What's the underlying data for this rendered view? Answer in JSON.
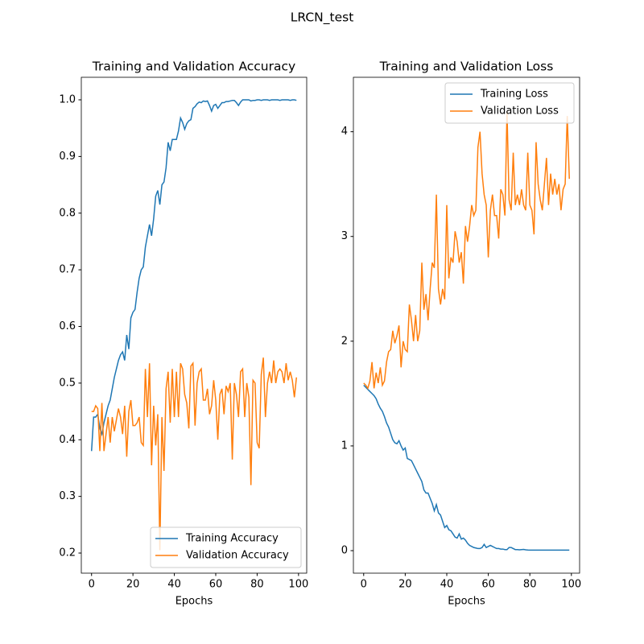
{
  "figure_title": "LRCN_test",
  "chart_data": [
    {
      "type": "line",
      "title": "Training and Validation Accuracy",
      "x_label": "Epochs",
      "x": [
        0,
        1,
        2,
        3,
        4,
        5,
        6,
        7,
        8,
        9,
        10,
        11,
        12,
        13,
        14,
        15,
        16,
        17,
        18,
        19,
        20,
        21,
        22,
        23,
        24,
        25,
        26,
        27,
        28,
        29,
        30,
        31,
        32,
        33,
        34,
        35,
        36,
        37,
        38,
        39,
        40,
        41,
        42,
        43,
        44,
        45,
        46,
        47,
        48,
        49,
        50,
        51,
        52,
        53,
        54,
        55,
        56,
        57,
        58,
        59,
        60,
        61,
        62,
        63,
        64,
        65,
        66,
        67,
        68,
        69,
        70,
        71,
        72,
        73,
        74,
        75,
        76,
        77,
        78,
        79,
        80,
        81,
        82,
        83,
        84,
        85,
        86,
        87,
        88,
        89,
        90,
        91,
        92,
        93,
        94,
        95,
        96,
        97,
        98,
        99
      ],
      "series": [
        {
          "name": "Training Accuracy",
          "color": "#1f77b4",
          "values": [
            0.38,
            0.44,
            0.44,
            0.445,
            0.42,
            0.41,
            0.43,
            0.445,
            0.46,
            0.47,
            0.49,
            0.51,
            0.525,
            0.54,
            0.55,
            0.555,
            0.54,
            0.585,
            0.56,
            0.615,
            0.625,
            0.63,
            0.66,
            0.685,
            0.7,
            0.705,
            0.74,
            0.76,
            0.78,
            0.76,
            0.79,
            0.83,
            0.84,
            0.815,
            0.85,
            0.855,
            0.88,
            0.925,
            0.91,
            0.93,
            0.93,
            0.93,
            0.945,
            0.968,
            0.96,
            0.948,
            0.958,
            0.963,
            0.965,
            0.985,
            0.988,
            0.993,
            0.996,
            0.995,
            0.998,
            0.997,
            0.998,
            0.99,
            0.98,
            0.99,
            0.992,
            0.985,
            0.99,
            0.995,
            0.995,
            0.997,
            0.997,
            0.998,
            0.999,
            0.999,
            0.995,
            0.99,
            0.996,
            1,
            1,
            1,
            1,
            0.998,
            0.999,
            0.999,
            1,
            1,
            0.999,
            1,
            1,
            1,
            0.999,
            1,
            1,
            1,
            1,
            0.999,
            1,
            1,
            1,
            1,
            0.999,
            1,
            1,
            0.999
          ]
        },
        {
          "name": "Validation Accuracy",
          "color": "#ff7f0e",
          "values": [
            0.45,
            0.45,
            0.46,
            0.455,
            0.38,
            0.465,
            0.38,
            0.41,
            0.44,
            0.395,
            0.44,
            0.415,
            0.435,
            0.455,
            0.44,
            0.41,
            0.46,
            0.37,
            0.45,
            0.47,
            0.425,
            0.425,
            0.43,
            0.44,
            0.395,
            0.39,
            0.525,
            0.44,
            0.535,
            0.355,
            0.46,
            0.39,
            0.445,
            0.205,
            0.44,
            0.345,
            0.49,
            0.52,
            0.43,
            0.525,
            0.44,
            0.52,
            0.44,
            0.535,
            0.525,
            0.48,
            0.465,
            0.42,
            0.53,
            0.535,
            0.425,
            0.5,
            0.52,
            0.525,
            0.47,
            0.47,
            0.49,
            0.445,
            0.46,
            0.505,
            0.47,
            0.4,
            0.48,
            0.49,
            0.445,
            0.495,
            0.485,
            0.5,
            0.365,
            0.5,
            0.48,
            0.44,
            0.52,
            0.525,
            0.44,
            0.5,
            0.475,
            0.32,
            0.505,
            0.5,
            0.395,
            0.385,
            0.515,
            0.545,
            0.44,
            0.5,
            0.52,
            0.5,
            0.54,
            0.5,
            0.52,
            0.525,
            0.52,
            0.5,
            0.535,
            0.505,
            0.52,
            0.505,
            0.475,
            0.51
          ]
        }
      ],
      "xlim": [
        -4.95,
        103.95
      ],
      "xticks": [
        0,
        20,
        40,
        60,
        80,
        100
      ],
      "ylim": [
        0.1645,
        1.0398
      ],
      "yticks": [
        0.2,
        0.3,
        0.4,
        0.5,
        0.6,
        0.7,
        0.8,
        0.9,
        {
          "value": 1,
          "label": "1.0"
        }
      ],
      "legend": "lower right"
    },
    {
      "type": "line",
      "title": "Training and Validation Loss",
      "x_label": "Epochs",
      "x": [
        0,
        1,
        2,
        3,
        4,
        5,
        6,
        7,
        8,
        9,
        10,
        11,
        12,
        13,
        14,
        15,
        16,
        17,
        18,
        19,
        20,
        21,
        22,
        23,
        24,
        25,
        26,
        27,
        28,
        29,
        30,
        31,
        32,
        33,
        34,
        35,
        36,
        37,
        38,
        39,
        40,
        41,
        42,
        43,
        44,
        45,
        46,
        47,
        48,
        49,
        50,
        51,
        52,
        53,
        54,
        55,
        56,
        57,
        58,
        59,
        60,
        61,
        62,
        63,
        64,
        65,
        66,
        67,
        68,
        69,
        70,
        71,
        72,
        73,
        74,
        75,
        76,
        77,
        78,
        79,
        80,
        81,
        82,
        83,
        84,
        85,
        86,
        87,
        88,
        89,
        90,
        91,
        92,
        93,
        94,
        95,
        96,
        97,
        98,
        99
      ],
      "series": [
        {
          "name": "Training Loss",
          "color": "#1f77b4",
          "values": [
            1.58,
            1.56,
            1.54,
            1.52,
            1.5,
            1.48,
            1.45,
            1.4,
            1.36,
            1.33,
            1.28,
            1.22,
            1.18,
            1.12,
            1.06,
            1.03,
            1.02,
            1.05,
            1.0,
            0.96,
            0.98,
            0.88,
            0.87,
            0.86,
            0.82,
            0.78,
            0.74,
            0.7,
            0.66,
            0.58,
            0.55,
            0.55,
            0.5,
            0.45,
            0.38,
            0.44,
            0.36,
            0.34,
            0.28,
            0.22,
            0.24,
            0.2,
            0.19,
            0.16,
            0.13,
            0.12,
            0.16,
            0.11,
            0.12,
            0.1,
            0.07,
            0.05,
            0.04,
            0.03,
            0.025,
            0.02,
            0.02,
            0.03,
            0.06,
            0.03,
            0.04,
            0.05,
            0.04,
            0.03,
            0.02,
            0.02,
            0.015,
            0.015,
            0.01,
            0.01,
            0.03,
            0.03,
            0.02,
            0.01,
            0.01,
            0.008,
            0.01,
            0.012,
            0.008,
            0.006,
            0.005,
            0.005,
            0.005,
            0.005,
            0.005,
            0.005,
            0.005,
            0.005,
            0.005,
            0.005,
            0.005,
            0.005,
            0.005,
            0.005,
            0.005,
            0.005,
            0.005,
            0.005,
            0.005,
            0.005
          ]
        },
        {
          "name": "Validation Loss",
          "color": "#ff7f0e",
          "values": [
            1.6,
            1.58,
            1.55,
            1.62,
            1.8,
            1.55,
            1.7,
            1.6,
            1.75,
            1.58,
            1.62,
            1.8,
            1.9,
            1.92,
            2.1,
            1.98,
            2.05,
            2.15,
            1.75,
            2.0,
            1.92,
            1.9,
            2.35,
            2.2,
            2.0,
            2.25,
            2.0,
            2.1,
            2.75,
            2.3,
            2.45,
            2.2,
            2.5,
            2.75,
            2.7,
            3.4,
            2.5,
            2.35,
            2.5,
            2.4,
            3.3,
            2.6,
            2.8,
            2.75,
            3.05,
            2.95,
            2.75,
            2.85,
            2.55,
            3.1,
            2.95,
            3.1,
            3.3,
            3.2,
            3.25,
            3.85,
            4.0,
            3.6,
            3.4,
            3.3,
            2.8,
            3.25,
            3.4,
            3.2,
            3.2,
            2.98,
            3.45,
            3.4,
            3.2,
            4.2,
            3.35,
            3.25,
            3.8,
            3.3,
            3.4,
            3.3,
            3.45,
            3.3,
            3.25,
            3.8,
            3.3,
            3.25,
            3.02,
            3.9,
            3.5,
            3.35,
            3.25,
            3.5,
            3.75,
            3.3,
            3.6,
            3.4,
            3.55,
            3.4,
            3.5,
            3.25,
            3.45,
            3.5,
            4.15,
            3.55
          ]
        }
      ],
      "xlim": [
        -4.95,
        103.95
      ],
      "xticks": [
        0,
        20,
        40,
        60,
        80,
        100
      ],
      "ylim": [
        -0.215,
        4.52
      ],
      "yticks": [
        0,
        1,
        2,
        3,
        4
      ],
      "legend": "upper right"
    }
  ]
}
